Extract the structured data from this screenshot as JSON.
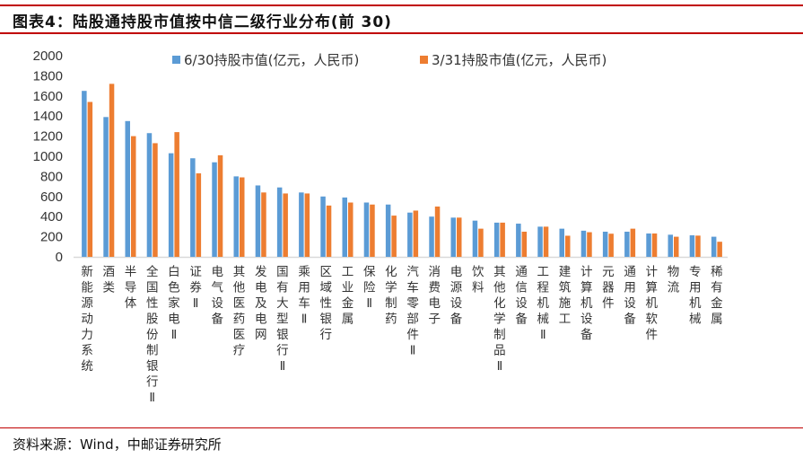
{
  "title": "图表4：陆股通持股市值按中信二级行业分布(前 30)",
  "source": "资料来源：Wind，中邮证券研究所",
  "colors": {
    "rule": "#c00000",
    "series1": "#5b9bd5",
    "series2": "#ed7d31"
  },
  "chart_data": {
    "type": "bar",
    "ylim": [
      0,
      2000
    ],
    "yticks": [
      0,
      200,
      400,
      600,
      800,
      1000,
      1200,
      1400,
      1600,
      1800,
      2000
    ],
    "grid": false,
    "legend": "top",
    "categories": [
      "新能源动力系统",
      "酒类",
      "半导体",
      "全国性股份制银行Ⅱ",
      "白色家电Ⅱ",
      "证券Ⅱ",
      "电气设备",
      "其他医药医疗",
      "发电及电网",
      "国有大型银行Ⅱ",
      "乘用车Ⅱ",
      "区域性银行",
      "工业金属",
      "保险Ⅱ",
      "化学制药",
      "汽车零部件Ⅱ",
      "消费电子",
      "电源设备",
      "饮料",
      "其他化学制品Ⅱ",
      "通信设备",
      "工程机械Ⅱ",
      "建筑施工",
      "计算机设备",
      "元器件",
      "通用设备",
      "计算机软件",
      "物流",
      "专用机械",
      "稀有金属"
    ],
    "series": [
      {
        "name": "6/30持股市值(亿元，人民币)",
        "values": [
          1650,
          1390,
          1350,
          1230,
          1030,
          980,
          940,
          800,
          710,
          690,
          640,
          600,
          590,
          540,
          520,
          440,
          400,
          390,
          360,
          340,
          330,
          300,
          280,
          260,
          250,
          250,
          232,
          220,
          214,
          200
        ]
      },
      {
        "name": "3/31持股市值(亿元，人民币)",
        "values": [
          1540,
          1720,
          1200,
          1130,
          1240,
          830,
          1010,
          790,
          640,
          630,
          630,
          510,
          540,
          520,
          410,
          460,
          500,
          390,
          280,
          340,
          250,
          300,
          210,
          245,
          230,
          280,
          232,
          200,
          211,
          150
        ]
      }
    ]
  }
}
